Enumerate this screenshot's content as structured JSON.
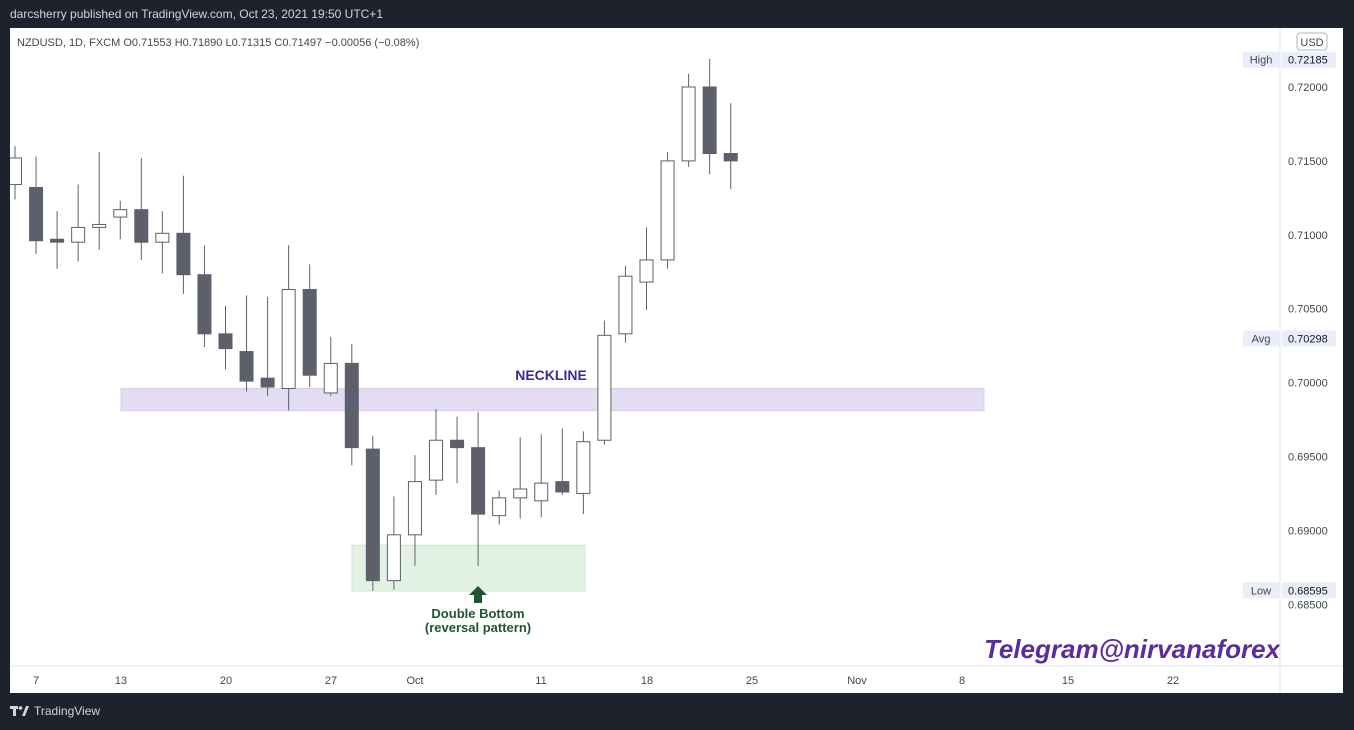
{
  "header": {
    "published_by": "darcsherry published on TradingView.com, Oct 23, 2021 19:50 UTC+1"
  },
  "footer": {
    "brand": "TradingView"
  },
  "chart_data": {
    "type": "candlestick",
    "symbol_line": "NZDUSD, 1D, FXCM  O0.71553  H0.71890  L0.71315  C0.71497  −0.00056 (−0.08%)",
    "currency_badge": "USD",
    "y_ticks": [
      "0.72000",
      "0.71500",
      "0.71000",
      "0.70500",
      "0.70000",
      "0.69500",
      "0.69000",
      "0.68500"
    ],
    "y_tick_values": [
      0.72,
      0.715,
      0.71,
      0.705,
      0.7,
      0.695,
      0.69,
      0.685
    ],
    "x_ticks": [
      "7",
      "13",
      "20",
      "27",
      "Oct",
      "11",
      "18",
      "25",
      "Nov",
      "8",
      "15",
      "22"
    ],
    "price_labels": [
      {
        "label": "High",
        "value": "0.72185"
      },
      {
        "label": "Avg",
        "value": "0.70298"
      },
      {
        "label": "Low",
        "value": "0.68595"
      }
    ],
    "annotations": {
      "neckline": "NECKLINE",
      "double_bottom_line1": "Double Bottom",
      "double_bottom_line2": "(reversal pattern)",
      "watermark": "Telegram@nirvanaforex"
    },
    "zones": [
      {
        "name": "neckline-zone",
        "from": 0.6981,
        "to": 0.6996,
        "color": "#e3dcf3"
      },
      {
        "name": "double-bottom-zone",
        "from": 0.6859,
        "to": 0.689,
        "color": "#e1f2e3"
      }
    ],
    "colors": {
      "bull_fill": "#ffffff",
      "bear_fill": "#5d606b",
      "wick": "#5d606b",
      "neckline_text": "#3f2a8c",
      "double_bottom_text": "#1e5631",
      "watermark": "#5a2d9c"
    },
    "candles": [
      {
        "date": "Sep 6",
        "o": 0.7134,
        "h": 0.716,
        "l": 0.7124,
        "c": 0.7152
      },
      {
        "date": "Sep 7",
        "o": 0.7132,
        "h": 0.7153,
        "l": 0.7087,
        "c": 0.7096
      },
      {
        "date": "Sep 8",
        "o": 0.7097,
        "h": 0.7116,
        "l": 0.7077,
        "c": 0.7095
      },
      {
        "date": "Sep 9",
        "o": 0.7095,
        "h": 0.7134,
        "l": 0.7082,
        "c": 0.7105
      },
      {
        "date": "Sep 10",
        "o": 0.7105,
        "h": 0.7156,
        "l": 0.709,
        "c": 0.7107
      },
      {
        "date": "Sep 13",
        "o": 0.7112,
        "h": 0.7123,
        "l": 0.7097,
        "c": 0.7117
      },
      {
        "date": "Sep 14",
        "o": 0.7117,
        "h": 0.7152,
        "l": 0.7083,
        "c": 0.7095
      },
      {
        "date": "Sep 15",
        "o": 0.7095,
        "h": 0.7116,
        "l": 0.7074,
        "c": 0.7101
      },
      {
        "date": "Sep 16",
        "o": 0.7101,
        "h": 0.714,
        "l": 0.706,
        "c": 0.7073
      },
      {
        "date": "Sep 17",
        "o": 0.7073,
        "h": 0.7093,
        "l": 0.7024,
        "c": 0.7033
      },
      {
        "date": "Sep 20",
        "o": 0.7033,
        "h": 0.7052,
        "l": 0.7009,
        "c": 0.7023
      },
      {
        "date": "Sep 21",
        "o": 0.7021,
        "h": 0.7059,
        "l": 0.6994,
        "c": 0.7001
      },
      {
        "date": "Sep 22",
        "o": 0.7003,
        "h": 0.7058,
        "l": 0.6991,
        "c": 0.6997
      },
      {
        "date": "Sep 23",
        "o": 0.6996,
        "h": 0.7093,
        "l": 0.6981,
        "c": 0.7063
      },
      {
        "date": "Sep 24",
        "o": 0.7063,
        "h": 0.708,
        "l": 0.6997,
        "c": 0.7005
      },
      {
        "date": "Sep 27",
        "o": 0.6993,
        "h": 0.7031,
        "l": 0.6991,
        "c": 0.7013
      },
      {
        "date": "Sep 28",
        "o": 0.7013,
        "h": 0.7026,
        "l": 0.6944,
        "c": 0.6956
      },
      {
        "date": "Sep 29",
        "o": 0.6955,
        "h": 0.6964,
        "l": 0.6859,
        "c": 0.6866
      },
      {
        "date": "Sep 30",
        "o": 0.6866,
        "h": 0.6923,
        "l": 0.686,
        "c": 0.6897
      },
      {
        "date": "Oct 1",
        "o": 0.6897,
        "h": 0.6951,
        "l": 0.6876,
        "c": 0.6933
      },
      {
        "date": "Oct 4",
        "o": 0.6934,
        "h": 0.6982,
        "l": 0.6924,
        "c": 0.6961
      },
      {
        "date": "Oct 5",
        "o": 0.6961,
        "h": 0.6977,
        "l": 0.6932,
        "c": 0.6956
      },
      {
        "date": "Oct 6",
        "o": 0.6956,
        "h": 0.698,
        "l": 0.6876,
        "c": 0.6911
      },
      {
        "date": "Oct 7",
        "o": 0.691,
        "h": 0.6927,
        "l": 0.6904,
        "c": 0.6922
      },
      {
        "date": "Oct 8",
        "o": 0.6922,
        "h": 0.6963,
        "l": 0.6908,
        "c": 0.6928
      },
      {
        "date": "Oct 11",
        "o": 0.692,
        "h": 0.6965,
        "l": 0.6909,
        "c": 0.6932
      },
      {
        "date": "Oct 12",
        "o": 0.6933,
        "h": 0.6969,
        "l": 0.6924,
        "c": 0.6926
      },
      {
        "date": "Oct 13",
        "o": 0.6925,
        "h": 0.6967,
        "l": 0.6911,
        "c": 0.696
      },
      {
        "date": "Oct 14",
        "o": 0.6961,
        "h": 0.7042,
        "l": 0.6958,
        "c": 0.7032
      },
      {
        "date": "Oct 15",
        "o": 0.7033,
        "h": 0.7079,
        "l": 0.7027,
        "c": 0.7072
      },
      {
        "date": "Oct 18",
        "o": 0.7068,
        "h": 0.7105,
        "l": 0.7049,
        "c": 0.7083
      },
      {
        "date": "Oct 19",
        "o": 0.7083,
        "h": 0.7156,
        "l": 0.7077,
        "c": 0.715
      },
      {
        "date": "Oct 20",
        "o": 0.715,
        "h": 0.7209,
        "l": 0.7146,
        "c": 0.72
      },
      {
        "date": "Oct 21",
        "o": 0.72,
        "h": 0.7219,
        "l": 0.7141,
        "c": 0.7155
      },
      {
        "date": "Oct 22",
        "o": 0.7155,
        "h": 0.7189,
        "l": 0.7131,
        "c": 0.715
      }
    ]
  }
}
